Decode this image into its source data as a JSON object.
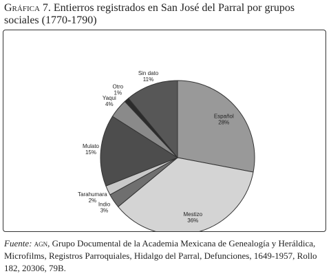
{
  "title": {
    "label": "Gráfica 7.",
    "text": "Entierros registrados en San José del Parral por grupos sociales (1770-1790)"
  },
  "source": {
    "label": "Fuente:",
    "agn": "agn",
    "text": ", Grupo Documental de la Academia Mexicana de Genealogía y Heráldica, Microfilms, Registros Parroquiales, Hidalgo del Parral, Defunciones, 1649-1957, Rollo 182, 20306, 79B."
  },
  "chart_data": {
    "type": "pie",
    "title": "Entierros registrados en San José del Parral por grupos sociales (1770-1790)",
    "slices": [
      {
        "name": "Español",
        "value": 28,
        "label": "28%",
        "color": "#999999"
      },
      {
        "name": "Mestizo",
        "value": 36,
        "label": "36%",
        "color": "#d4d4d4"
      },
      {
        "name": "Indio",
        "value": 3,
        "label": "3%",
        "color": "#6f6f6f"
      },
      {
        "name": "Tarahumara",
        "value": 2,
        "label": "2%",
        "color": "#c9c9c9"
      },
      {
        "name": "Mulato",
        "value": 15,
        "label": "15%",
        "color": "#4d4d4d"
      },
      {
        "name": "Yaqui",
        "value": 4,
        "label": "4%",
        "color": "#8a8a8a"
      },
      {
        "name": "Otro",
        "value": 1,
        "label": "1%",
        "color": "#2b2b2b"
      },
      {
        "name": "Sin dato",
        "value": 11,
        "label": "11%",
        "color": "#575757"
      }
    ],
    "start_direction": "top",
    "direction": "clockwise"
  }
}
